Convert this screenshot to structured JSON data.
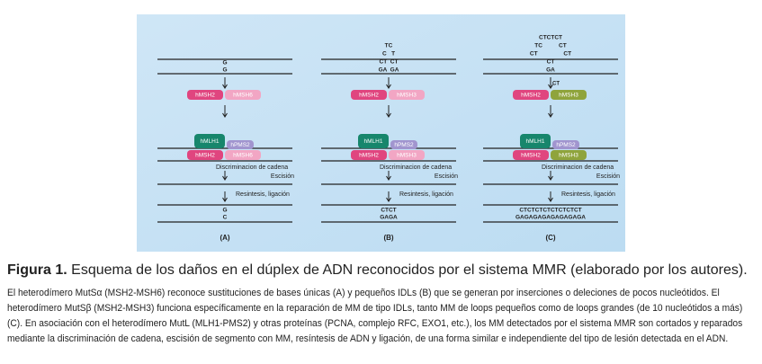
{
  "figure": {
    "panels": [
      {
        "label": "(A)",
        "top": [
          "G",
          "G"
        ],
        "complex1": [
          "hMSH2",
          "hMSH6"
        ],
        "complex2": [
          "hMLH1",
          "hPMS2",
          "hMSH2",
          "hMSH6"
        ],
        "discrimination": "Discriminacion de cadena",
        "excision": "Escisión",
        "resynthesis": "Resintesis, ligación",
        "bottom": [
          "G",
          "C"
        ]
      },
      {
        "label": "(B)",
        "top": [
          "TC",
          "C   T",
          "CT  CT",
          "GA  GA"
        ],
        "complex1": [
          "hMSH2",
          "hMSH3"
        ],
        "complex2": [
          "hMLH1",
          "hPMS2",
          "hMSH2",
          "hMSH3"
        ],
        "discrimination": "Discriminacion de cadena",
        "excision": "Escisión",
        "resynthesis": "Resintesis, ligación",
        "bottom": [
          "CTCT",
          "GAGA"
        ]
      },
      {
        "label": "(C)",
        "top": [
          "CTCTCT",
          "TC          CT",
          "CT                CT",
          "CT",
          "GA"
        ],
        "insert": "CT",
        "complex1": [
          "hMSH2",
          "hMSH3"
        ],
        "complex2": [
          "hMLH1",
          "hPMS2",
          "hMSH2",
          "hMSH3"
        ],
        "discrimination": "Discriminacion de cadena",
        "excision": "Escisión",
        "resynthesis": "Resintesis, ligación",
        "bottom": [
          "CTCTCTCTCTCTCTCT",
          "GAGAGAGAGAGAGAGA"
        ]
      }
    ]
  },
  "caption": {
    "label": "Figura 1.",
    "title": "Esquema de los daños en el dúplex de ADN reconocidos por el sistema MMR (elaborado por los autores).",
    "lines": [
      "El heterodímero MutSα (MSH2-MSH6) reconoce sustituciones de bases únicas (A) y pequeños IDLs (B) que se generan por inserciones o deleciones de pocos nucleótidos. El",
      "heterodímero MutSβ (MSH2-MSH3) funciona específicamente en la reparación de MM de tipo IDLs, tanto MM de loops pequeños como de loops grandes (de 10 nucleótidos a más)",
      "(C). En asociación con el heterodímero MutL (MLH1-PMS2) y otras proteínas (PCNA, complejo RFC, EXO1, etc.), los MM detectados por el sistema MMR son cortados y reparados",
      "mediante la discriminación de cadena, escisión de segmento con MM, resíntesis de ADN y ligación, de una forma similar e independiente del tipo de lesión detectada en el ADN."
    ]
  }
}
